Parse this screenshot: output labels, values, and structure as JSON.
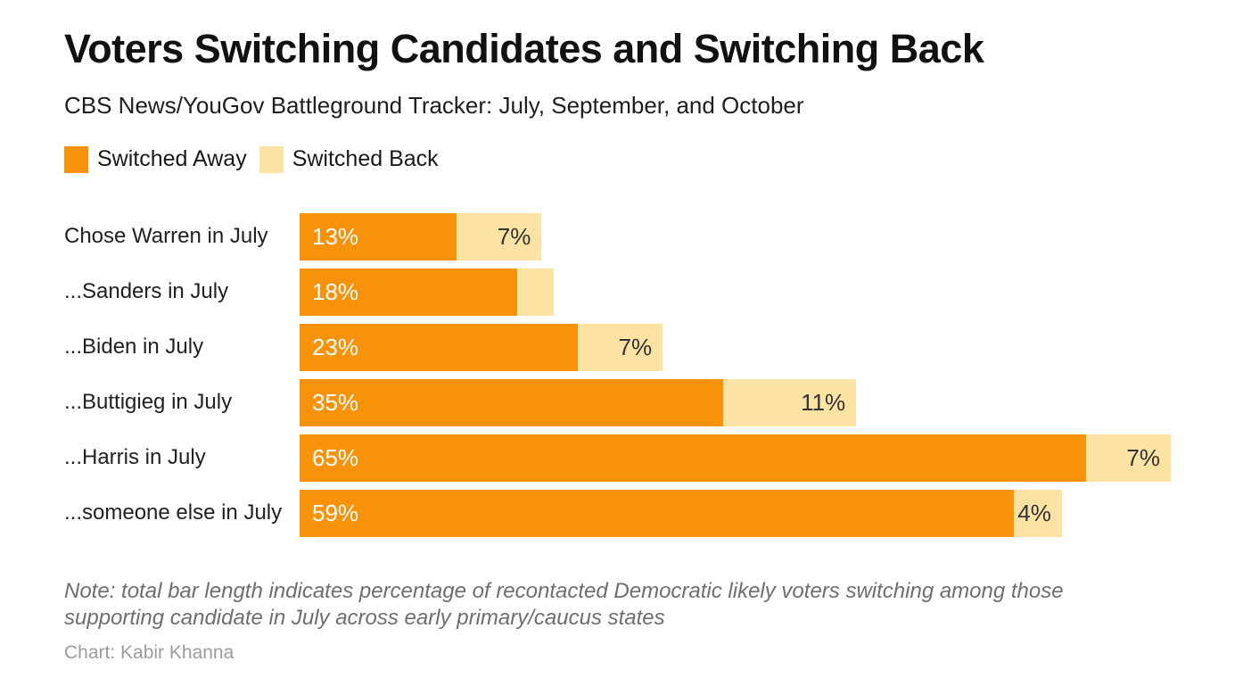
{
  "header": {
    "title": "Voters Switching Candidates and Switching Back",
    "subtitle": "CBS News/YouGov Battleground Tracker: July, September, and October"
  },
  "legend": {
    "items": [
      {
        "label": "Switched Away",
        "color": "#F8920A"
      },
      {
        "label": "Switched Back",
        "color": "#FCE3A4"
      }
    ]
  },
  "chart_data": {
    "type": "bar",
    "orientation": "horizontal",
    "stacked": true,
    "title": "Voters Switching Candidates and Switching Back",
    "subtitle": "CBS News/YouGov Battleground Tracker: July, September, and October",
    "categories": [
      "Chose Warren in July",
      "...Sanders in July",
      "...Biden in July",
      "...Buttigieg in July",
      "...Harris in July",
      "...someone else in July"
    ],
    "series": [
      {
        "name": "Switched Away",
        "color": "#F8920A",
        "values": [
          13,
          18,
          23,
          35,
          65,
          59
        ],
        "data_labels": [
          "13%",
          "18%",
          "23%",
          "35%",
          "65%",
          "59%"
        ]
      },
      {
        "name": "Switched Back",
        "color": "#FCE3A4",
        "values": [
          7,
          3,
          7,
          11,
          7,
          4
        ],
        "data_labels": [
          "7%",
          "",
          "7%",
          "11%",
          "7%",
          "4%"
        ]
      }
    ],
    "xlim": [
      0,
      72
    ],
    "axis_visible": false,
    "grid": false,
    "legend_position": "top-left",
    "note": "Note: total bar length indicates percentage of recontacted Democratic likely voters switching among those supporting candidate in July across early primary/caucus states",
    "credit": "Chart: Kabir Khanna"
  },
  "footer": {
    "note": "Note: total bar length indicates percentage of recontacted Democratic likely voters switching among those supporting candidate in July across early primary/caucus states",
    "credit": "Chart: Kabir Khanna"
  },
  "colors": {
    "switched_away": "#F8920A",
    "switched_back": "#FCE3A4",
    "bar_label_on_orange": "#FFFFFF",
    "bar_label_on_cream": "#333333",
    "background": "#FFFFFF"
  }
}
